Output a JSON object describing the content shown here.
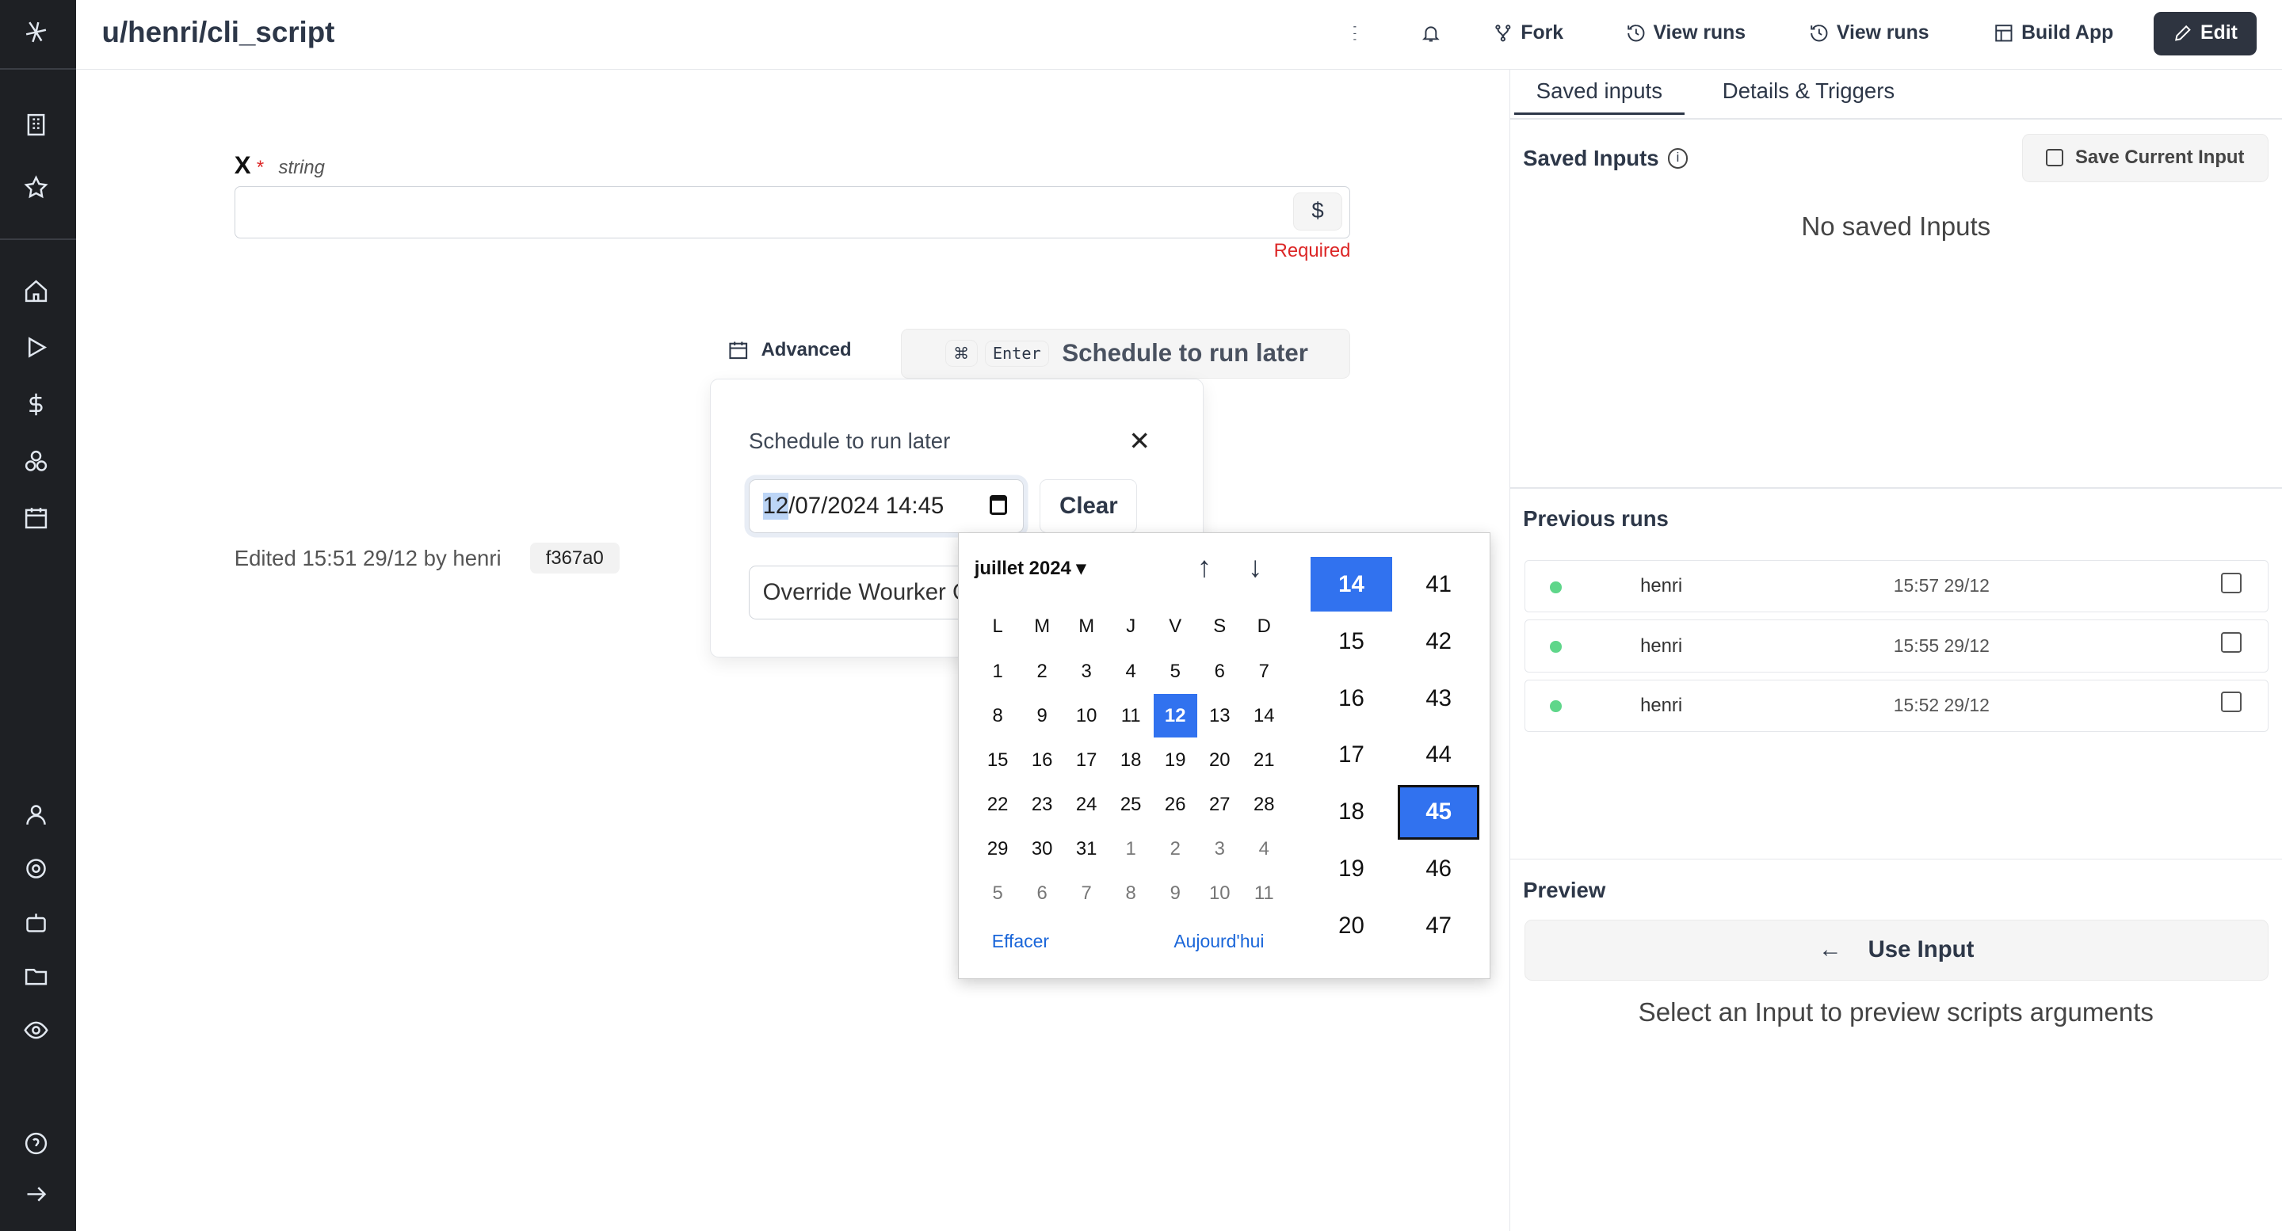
{
  "app": {
    "title": "u/henri/cli_script"
  },
  "header": {
    "fork": "Fork",
    "view_runs_1": "View runs",
    "view_runs_2": "View runs",
    "build_app": "Build App",
    "edit": "Edit"
  },
  "form": {
    "field_name": "X",
    "required_mark": "*",
    "field_type": "string",
    "input_value": "",
    "dollar": "$",
    "required_text": "Required"
  },
  "actions": {
    "advanced": "Advanced",
    "kbd_cmd": "⌘",
    "kbd_enter": "Enter",
    "schedule": "Schedule to run later"
  },
  "edited": {
    "text": "Edited 15:51 29/12 by henri",
    "hash": "f367a0"
  },
  "popup": {
    "title": "Schedule to run later",
    "date_value": "12/07/2024 14:45",
    "date_selected_part": "12",
    "date_rest": "/07/2024 14:45",
    "clear": "Clear",
    "override": "Override Wourker Group"
  },
  "calendar": {
    "month": "juillet 2024",
    "weekdays": [
      "L",
      "M",
      "M",
      "J",
      "V",
      "S",
      "D"
    ],
    "weeks": [
      [
        "1",
        "2",
        "3",
        "4",
        "5",
        "6",
        "7"
      ],
      [
        "8",
        "9",
        "10",
        "11",
        "12",
        "13",
        "14"
      ],
      [
        "15",
        "16",
        "17",
        "18",
        "19",
        "20",
        "21"
      ],
      [
        "22",
        "23",
        "24",
        "25",
        "26",
        "27",
        "28"
      ],
      [
        "29",
        "30",
        "31",
        "1",
        "2",
        "3",
        "4"
      ],
      [
        "5",
        "6",
        "7",
        "8",
        "9",
        "10",
        "11"
      ]
    ],
    "selected_day": "12",
    "clear": "Effacer",
    "today": "Aujourd'hui",
    "hours": [
      "14",
      "15",
      "16",
      "17",
      "18",
      "19",
      "20"
    ],
    "selected_hour": "14",
    "minutes": [
      "41",
      "42",
      "43",
      "44",
      "45",
      "46",
      "47"
    ],
    "selected_minute": "45"
  },
  "right": {
    "tabs": [
      "Saved inputs",
      "Details & Triggers"
    ],
    "active_tab": "Saved inputs",
    "saved_inputs_title": "Saved Inputs",
    "save_current": "Save Current Input",
    "no_saved": "No saved Inputs",
    "previous_runs_title": "Previous runs",
    "runs": [
      {
        "user": "henri",
        "time": "15:57 29/12",
        "status": "success"
      },
      {
        "user": "henri",
        "time": "15:55 29/12",
        "status": "success"
      },
      {
        "user": "henri",
        "time": "15:52 29/12",
        "status": "success"
      }
    ],
    "preview_title": "Preview",
    "use_input": "Use Input",
    "preview_hint": "Select an Input to preview scripts arguments"
  },
  "colors": {
    "accent": "#3172ef",
    "sidebar": "#1e2024",
    "success": "#5fd68a",
    "required": "#dc2626"
  }
}
